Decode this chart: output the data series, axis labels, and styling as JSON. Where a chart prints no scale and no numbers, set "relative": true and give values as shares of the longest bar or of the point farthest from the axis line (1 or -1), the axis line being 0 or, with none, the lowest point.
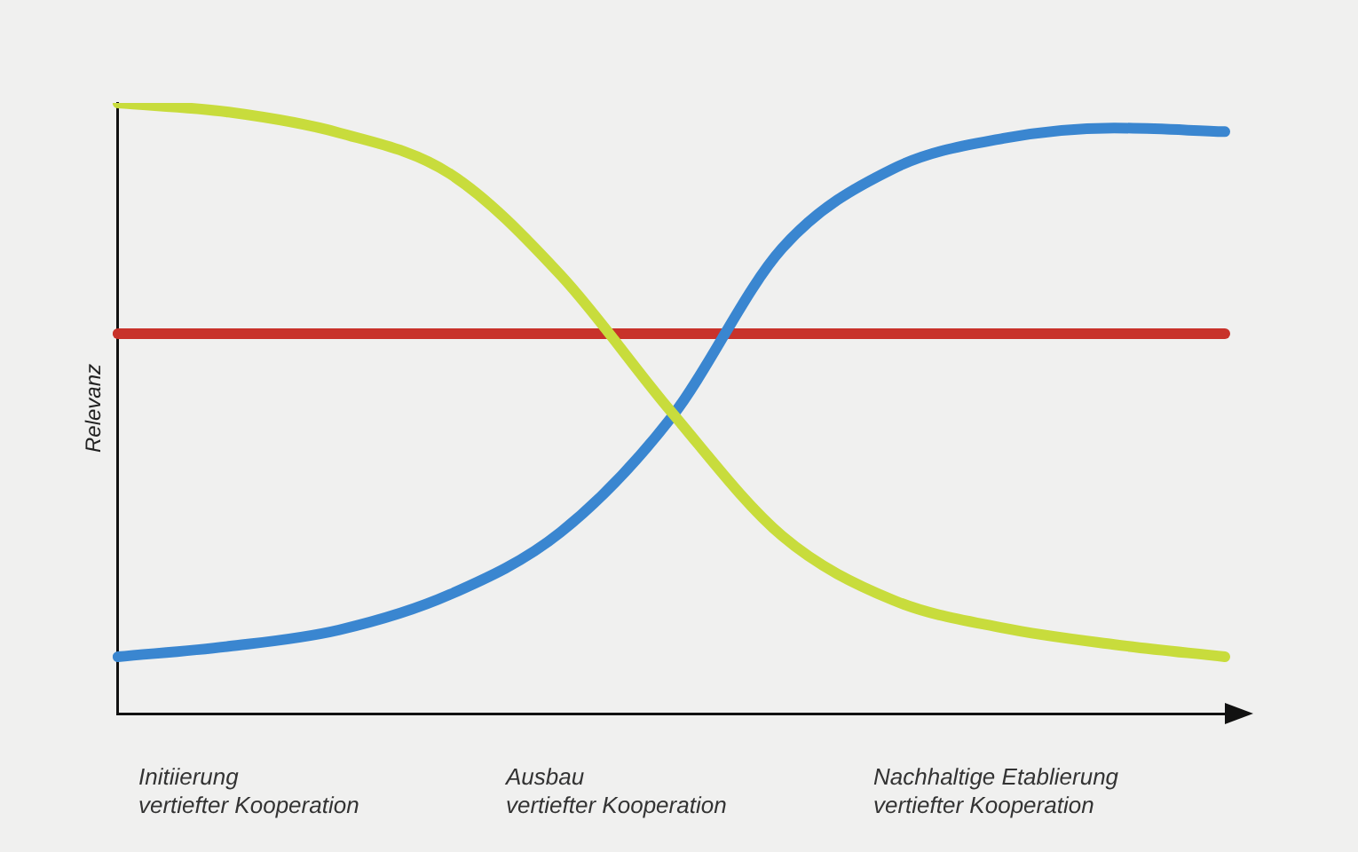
{
  "chart_data": {
    "type": "line",
    "ylabel": "Relevanz",
    "relative": true,
    "grid": false,
    "legend": false,
    "marker": "none",
    "line_style": "solid",
    "categories": [
      null,
      null,
      null,
      null,
      null,
      null,
      null,
      null,
      null,
      null,
      null
    ],
    "series": [
      {
        "color": "#c8dc3c",
        "values": [
          1.0,
          0.985,
          0.951,
          0.884,
          0.718,
          0.494,
          0.291,
          0.186,
          0.14,
          0.113,
          0.093
        ]
      },
      {
        "color": "#3a86d0",
        "values": [
          0.093,
          0.11,
          0.137,
          0.195,
          0.297,
          0.485,
          0.762,
          0.892,
          0.942,
          0.959,
          0.953
        ]
      },
      {
        "color": "#c8322a",
        "values": [
          0.622,
          0.622,
          0.622,
          0.622,
          0.622,
          0.622,
          0.622,
          0.622,
          0.622,
          0.622,
          0.622
        ]
      }
    ],
    "annotations": [
      "Initiierung\nvertiefter Kooperation",
      "Ausbau\nvertiefter Kooperation",
      "Nachhaltige Etablierung\nvertiefter Kooperation"
    ]
  }
}
